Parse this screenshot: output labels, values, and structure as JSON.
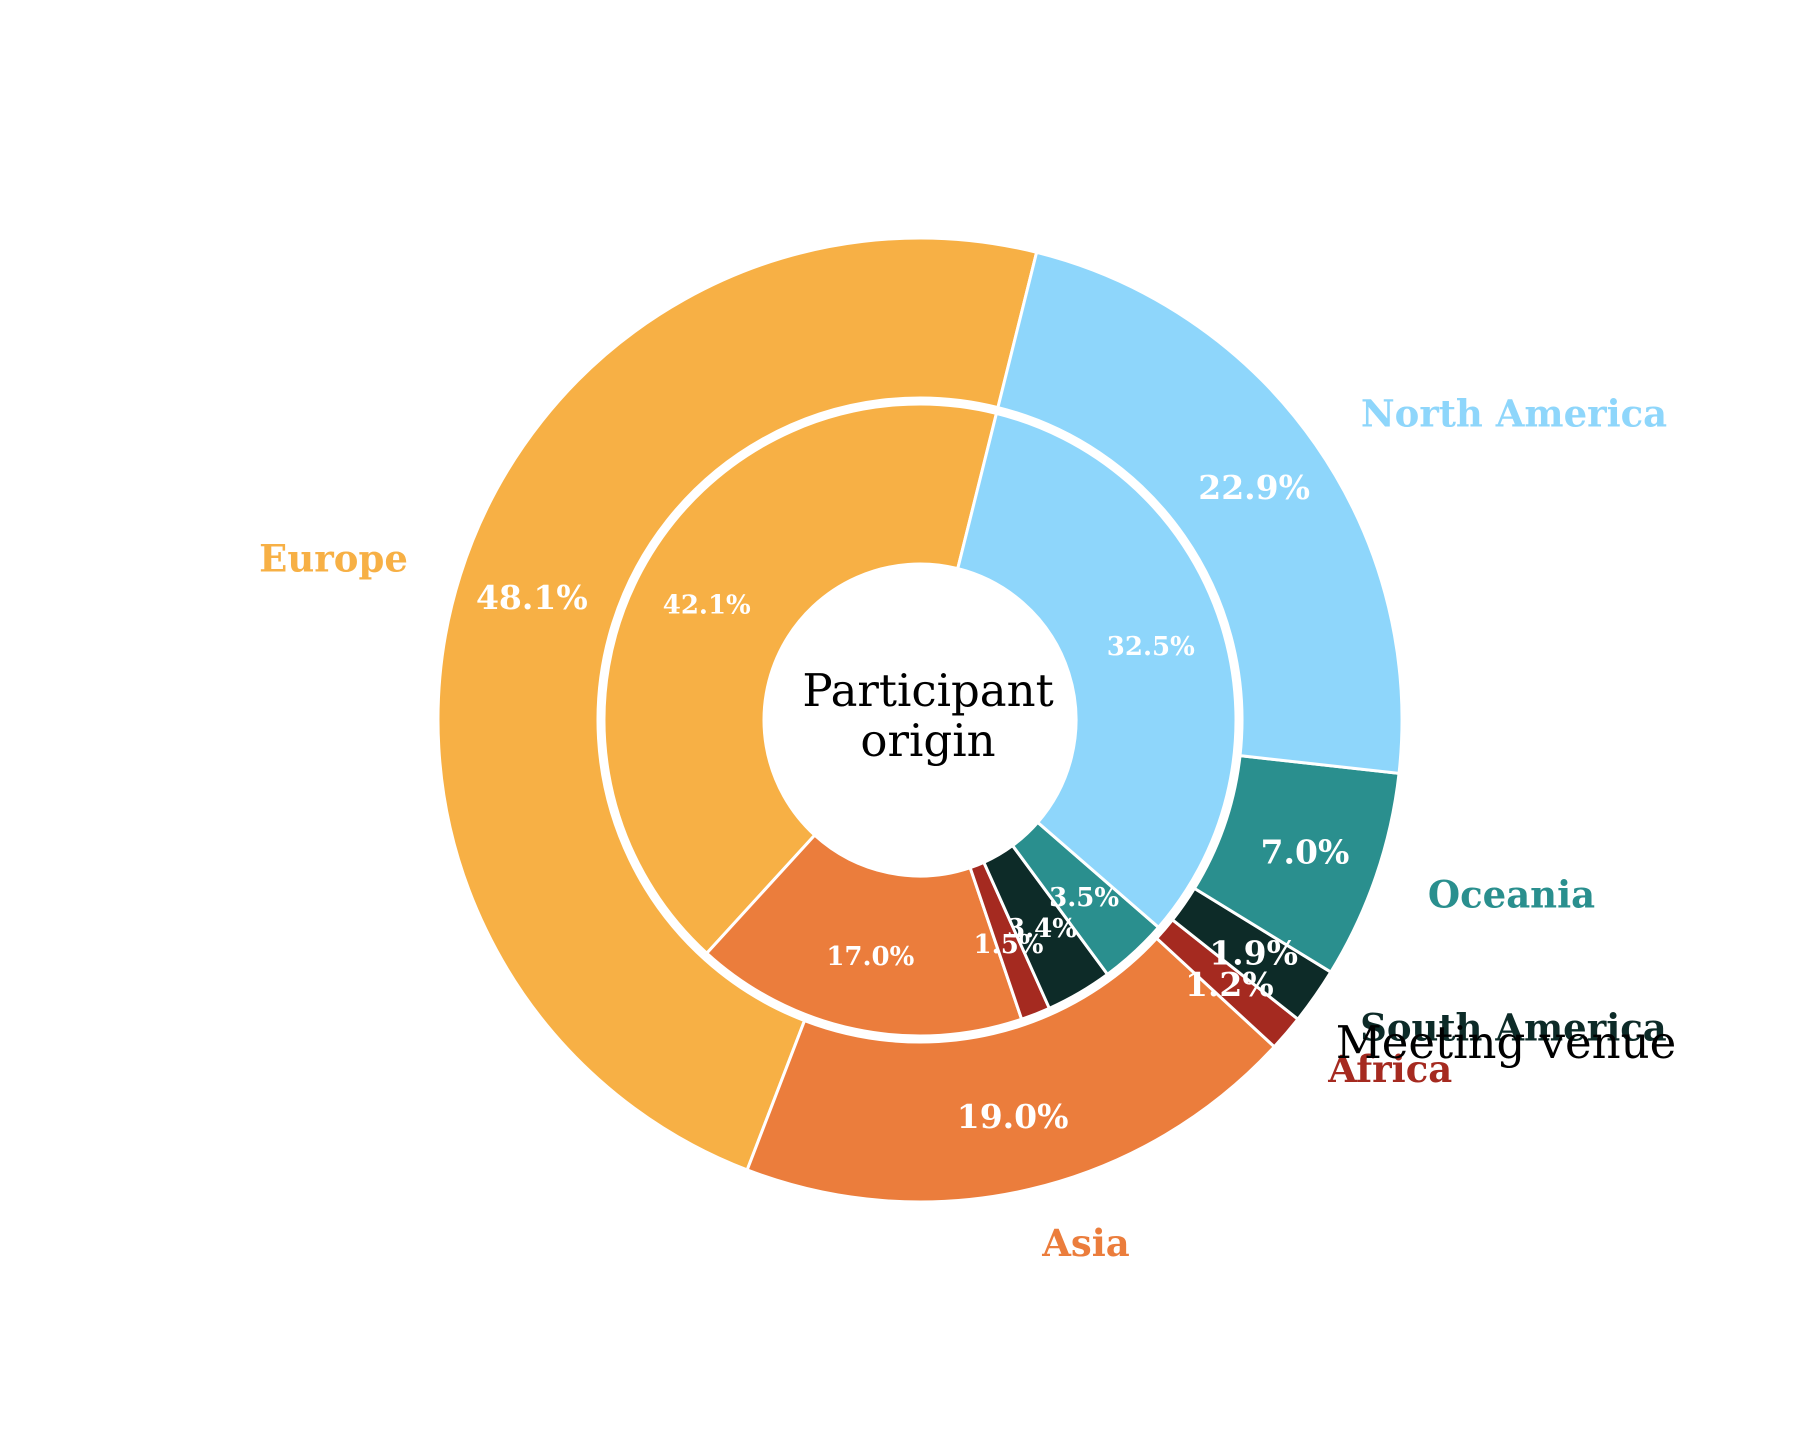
{
  "chart_data": {
    "type": "pie",
    "subtype": "nested-donut",
    "center_label": [
      "Participant",
      "origin"
    ],
    "outer_ring_label": "Meeting venue",
    "inner_ring_label": "Participant origin",
    "categories": [
      "Europe",
      "Asia",
      "Africa",
      "South America",
      "Oceania",
      "North America"
    ],
    "colors": {
      "Europe": "#F7B045",
      "Asia": "#EB7D3C",
      "Africa": "#A52A20",
      "South America": "#0D2B28",
      "Oceania": "#2A8F8E",
      "North America": "#8ED6FB"
    },
    "series": [
      {
        "ring": "outer",
        "values": [
          48.1,
          19.0,
          1.2,
          1.9,
          7.0,
          22.9
        ],
        "labels": [
          "48.1%",
          "19.0%",
          "1.2%",
          "1.9%",
          "7.0%",
          "22.9%"
        ]
      },
      {
        "ring": "inner",
        "values": [
          42.1,
          17.0,
          1.5,
          3.4,
          3.5,
          32.5
        ],
        "labels": [
          "42.1%",
          "17.0%",
          "1.5%",
          "3.4%",
          "3.5%",
          "32.5%"
        ]
      }
    ],
    "start_angle_deg": 76,
    "direction": "counterclockwise",
    "legend": "none"
  }
}
